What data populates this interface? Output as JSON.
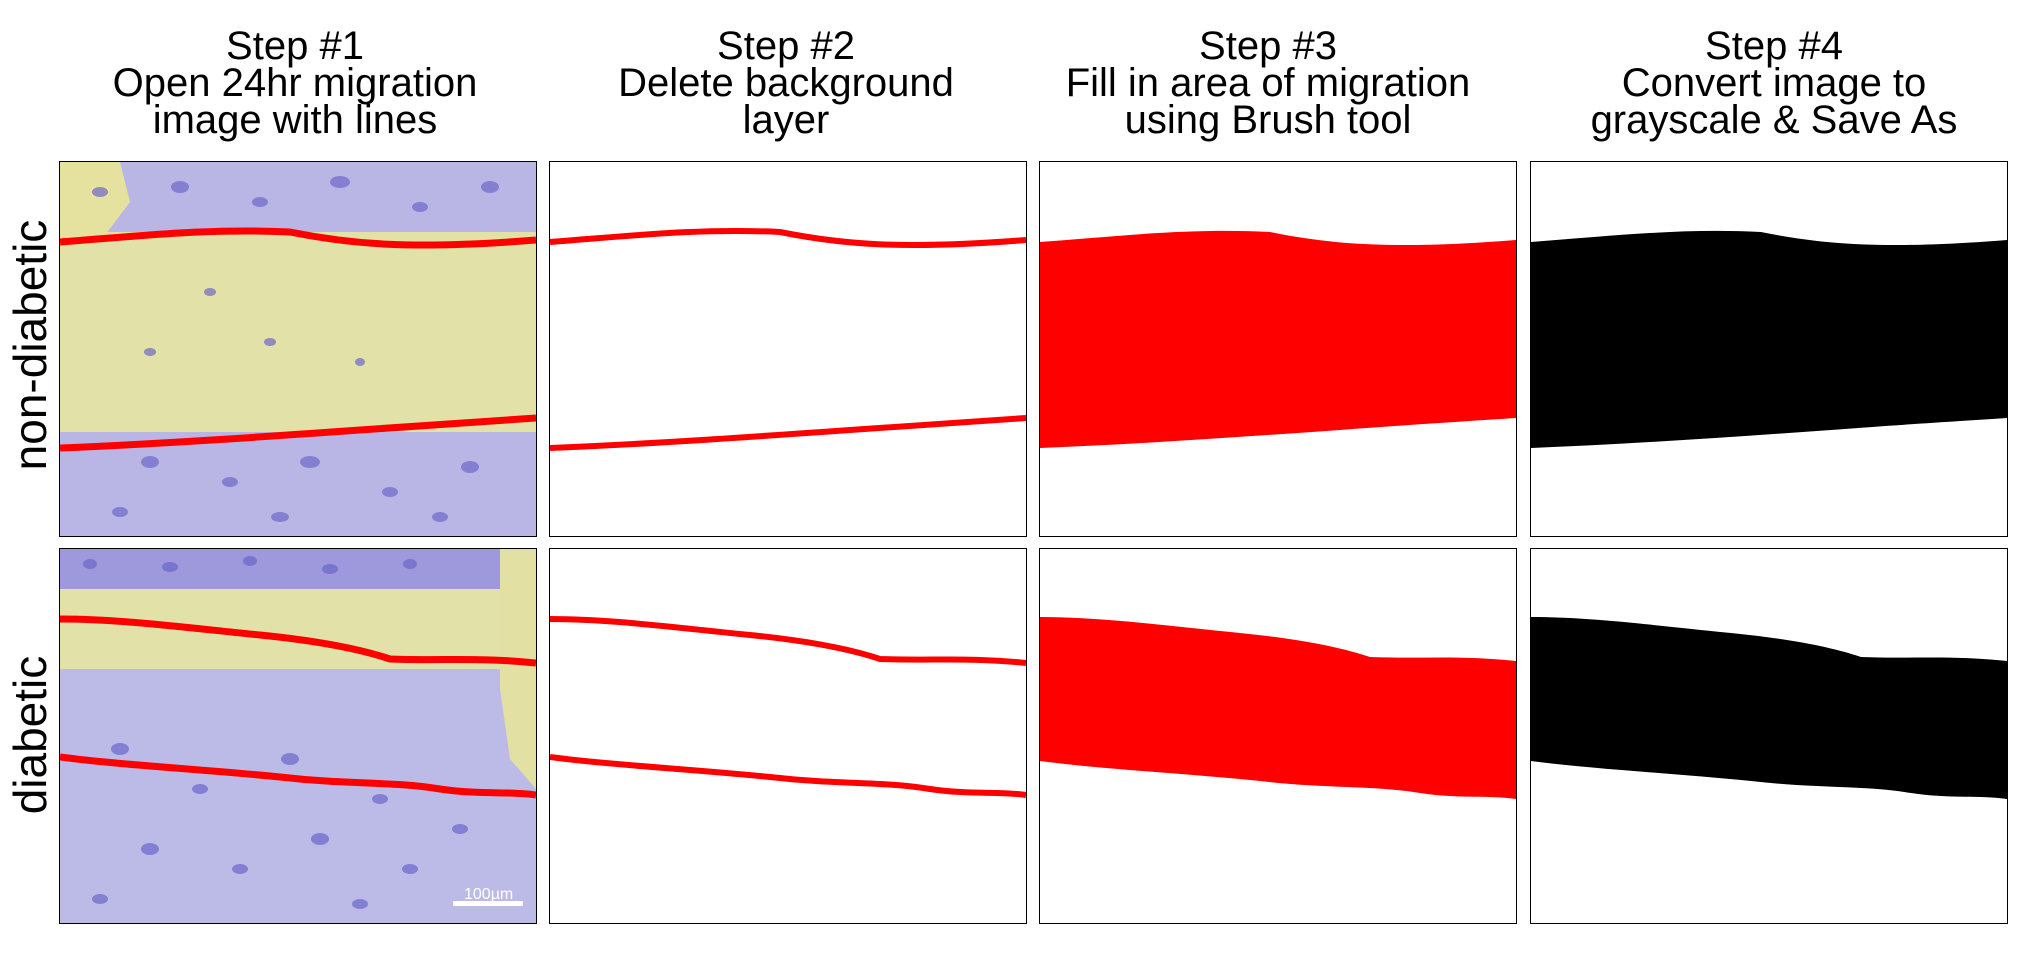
{
  "steps": [
    {
      "title": "Step #1",
      "line1": "Open 24hr migration",
      "line2": "image with lines"
    },
    {
      "title": "Step #2",
      "line1": "Delete background",
      "line2": "layer"
    },
    {
      "title": "Step #3",
      "line1": "Fill in area of migration",
      "line2": "using Brush tool"
    },
    {
      "title": "Step #4",
      "line1": "Convert image to",
      "line2": "grayscale & Save As"
    }
  ],
  "rows": [
    "non-diabetic",
    "diabetic"
  ],
  "scalebar": {
    "label": "100µm"
  },
  "colors": {
    "line": "#ff0000",
    "fill_step3": "#ff0000",
    "fill_step4": "#000000",
    "cells": "#8a86d6",
    "wound": "#e6e6a6"
  }
}
